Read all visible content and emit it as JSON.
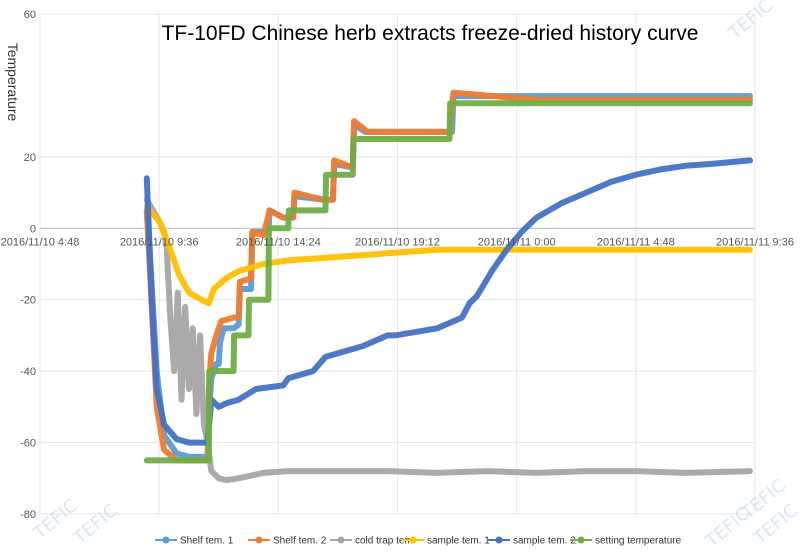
{
  "chart_data": {
    "type": "line",
    "title": "TF-10FD Chinese herb extracts freeze-dried history curve",
    "ylabel": "Temperature",
    "ylim": [
      -80,
      60
    ],
    "yticks": [
      60,
      20,
      0,
      -20,
      -40,
      -60,
      -80
    ],
    "xticks": [
      "2016/11/10 4:48",
      "2016/11/10 9:36",
      "2016/11/10 14:24",
      "2016/11/10 19:12",
      "2016/11/11 0:00",
      "2016/11/11 4:48",
      "2016/11/11 9:36"
    ],
    "x_hours": [
      0,
      4.8,
      9.6,
      14.4,
      19.2,
      24,
      28.8
    ],
    "grid": true,
    "legend_position": "bottom",
    "series": [
      {
        "name": "Shelf tem. 1",
        "color": "#5b9bd5",
        "x": [
          4.3,
          4.45,
          4.7,
          5.0,
          5.5,
          6.0,
          6.75,
          6.82,
          6.9,
          7.1,
          7.2,
          7.25,
          7.4,
          7.8,
          8.0,
          8.05,
          8.4,
          8.5,
          8.55,
          9.0,
          9.2,
          9.25,
          9.8,
          10.2,
          10.25,
          11.4,
          11.8,
          11.85,
          12.6,
          12.65,
          13.1,
          13.2,
          13.25,
          13.8,
          13.9,
          13.95,
          16.5,
          16.6,
          16.65,
          19.2,
          19.3,
          19.35,
          20.5,
          22,
          24,
          26,
          28.6
        ],
        "y": [
          5,
          -10,
          -40,
          -58,
          -63,
          -64,
          -64,
          -50,
          -42,
          -38,
          -38,
          -32,
          -28,
          -28,
          -27,
          -17,
          -17,
          -17,
          -1,
          -1,
          -1,
          5,
          3,
          3,
          9,
          8,
          8,
          18,
          17,
          29,
          27,
          27,
          27,
          27,
          27,
          27,
          27,
          27,
          37,
          37,
          37,
          37,
          37,
          37,
          37,
          37,
          37
        ]
      },
      {
        "name": "Shelf tem. 2",
        "color": "#ed7d31",
        "x": [
          4.3,
          4.45,
          4.7,
          5.0,
          5.5,
          6.0,
          6.75,
          6.82,
          6.9,
          7.1,
          7.3,
          7.8,
          8.0,
          8.05,
          8.5,
          8.55,
          9.0,
          9.25,
          9.8,
          10.2,
          10.25,
          11.4,
          11.8,
          11.85,
          12.6,
          12.65,
          13.2,
          13.25,
          16.5,
          16.65,
          20,
          24,
          28.6
        ],
        "y": [
          5,
          -15,
          -50,
          -62,
          -65,
          -65,
          -65,
          -42,
          -35,
          -30,
          -26,
          -25,
          -25,
          -15,
          -14,
          -1,
          -2,
          5,
          3,
          3,
          10,
          8,
          8,
          19,
          17,
          30,
          27,
          27,
          27,
          38,
          36,
          36,
          36
        ]
      },
      {
        "name": "cold trap tem",
        "color": "#a5a5a5",
        "x": [
          4.3,
          4.8,
          5.0,
          5.1,
          5.25,
          5.4,
          5.55,
          5.7,
          5.85,
          6.0,
          6.15,
          6.3,
          6.45,
          6.6,
          6.75,
          6.9,
          7.2,
          7.5,
          8.0,
          9.0,
          10,
          12,
          14,
          16,
          18,
          20,
          22,
          24,
          26,
          28.6
        ],
        "y": [
          8,
          2,
          -1,
          -5,
          -25,
          -40,
          -18,
          -48,
          -22,
          -45,
          -28,
          -52,
          -30,
          -55,
          -60,
          -68,
          -70,
          -70.5,
          -70,
          -68.5,
          -68,
          -68,
          -68,
          -68.5,
          -68,
          -68.5,
          -68,
          -68,
          -68.5,
          -68
        ]
      },
      {
        "name": "sample tem. 1",
        "color": "#ffc000",
        "x": [
          4.3,
          4.8,
          5.2,
          5.6,
          6.0,
          6.5,
          6.8,
          7.0,
          7.5,
          8.0,
          9.0,
          10.0,
          12,
          14,
          16,
          18,
          20,
          22,
          24,
          26,
          28.6
        ],
        "y": [
          6,
          2,
          -5,
          -13,
          -18,
          -20,
          -21,
          -17,
          -14,
          -12,
          -10,
          -9,
          -8,
          -7,
          -6,
          -6,
          -6,
          -6,
          -6,
          -6,
          -6
        ]
      },
      {
        "name": "sample tem. 2",
        "color": "#4472c4",
        "x": [
          4.3,
          4.5,
          4.7,
          5.0,
          5.5,
          6.0,
          6.75,
          6.85,
          6.9,
          7.2,
          7.5,
          8.0,
          8.7,
          9.8,
          10.0,
          11.0,
          11.5,
          13.0,
          14.0,
          14.3,
          16.0,
          17.0,
          17.3,
          17.6,
          18.2,
          18.8,
          19.4,
          20,
          21,
          22,
          23,
          24,
          25,
          26,
          27,
          28.6
        ],
        "y": [
          14,
          -20,
          -45,
          -55,
          -59,
          -60,
          -60,
          -52,
          -48,
          -50,
          -49,
          -48,
          -45,
          -44,
          -42,
          -40,
          -36,
          -33,
          -30,
          -30,
          -28,
          -25,
          -21,
          -19,
          -12,
          -6,
          -1,
          3,
          7,
          10,
          13,
          15,
          16.5,
          17.5,
          18,
          19
        ]
      },
      {
        "name": "setting temperature",
        "color": "#70ad47",
        "x": [
          4.3,
          6.8,
          6.82,
          7.8,
          7.82,
          8.4,
          8.42,
          9.2,
          9.22,
          10.0,
          10.02,
          11.5,
          11.52,
          12.6,
          12.62,
          16.5,
          16.52,
          28.6
        ],
        "y": [
          -65,
          -65,
          -40,
          -40,
          -30,
          -30,
          -20,
          -20,
          0,
          0,
          5,
          5,
          15,
          15,
          25,
          25,
          35,
          35
        ]
      }
    ],
    "watermark": "TEFIC"
  }
}
